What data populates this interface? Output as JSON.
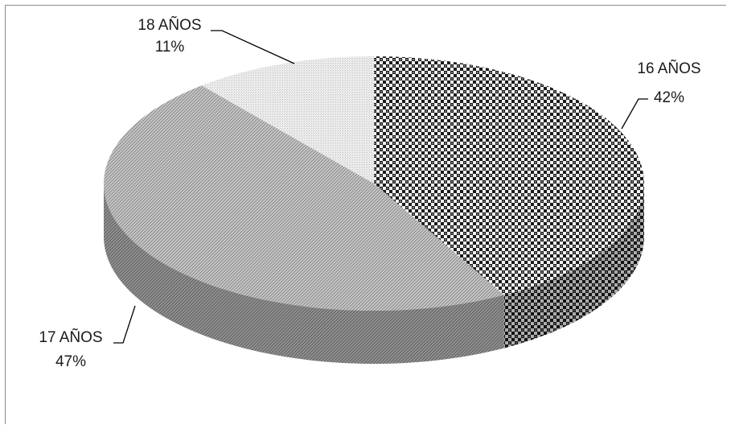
{
  "chart_data": {
    "type": "pie",
    "style": "3d",
    "legend": "none",
    "categories": [
      "16 AÑOS",
      "17 AÑOS",
      "18 AÑOS"
    ],
    "values": [
      42,
      47,
      11
    ],
    "labels": {
      "s16": {
        "name": "16 AÑOS",
        "pct": "42%"
      },
      "s17": {
        "name": "17 AÑOS",
        "pct": "47%"
      },
      "s18": {
        "name": "18 AÑOS",
        "pct": "11%"
      }
    }
  }
}
